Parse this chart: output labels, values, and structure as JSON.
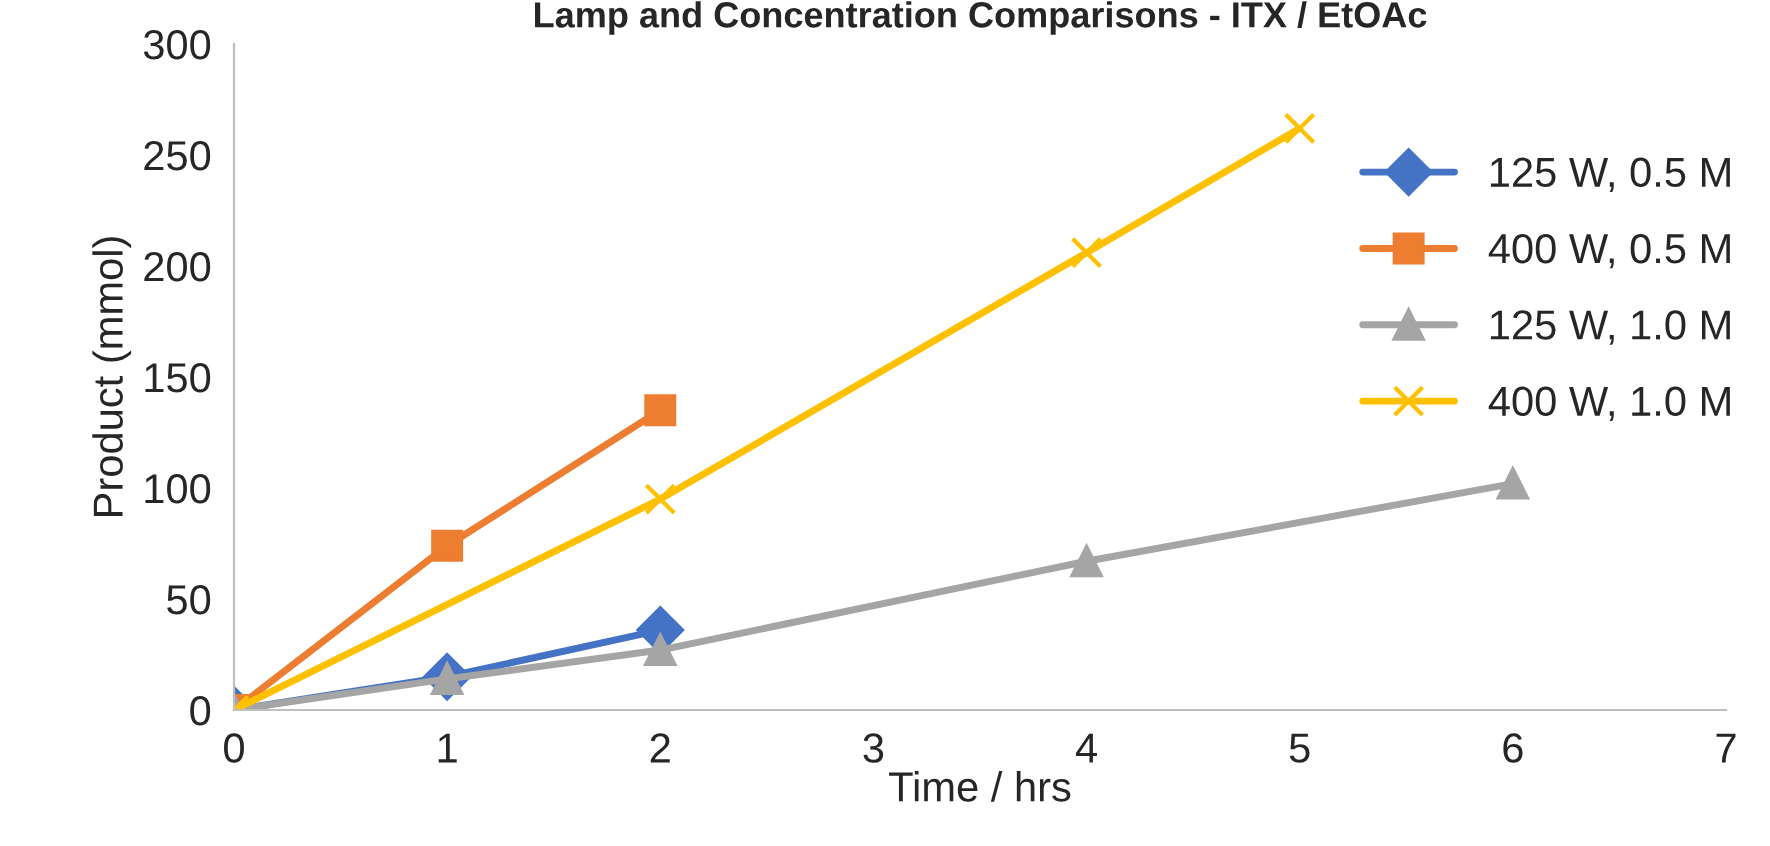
{
  "chart_data": {
    "type": "line",
    "title": "Lamp and Concentration Comparisons - ITX / EtOAc",
    "xlabel": "Time / hrs",
    "ylabel": "Product (mmol)",
    "xlim": [
      0,
      7
    ],
    "xticks": [
      0,
      1,
      2,
      3,
      4,
      5,
      6,
      7
    ],
    "ylim": [
      0,
      300
    ],
    "yticks": [
      0,
      50,
      100,
      150,
      200,
      250,
      300
    ],
    "grid": false,
    "legend": "right",
    "line_style": "solid",
    "series": [
      {
        "name": "125 W, 0.5 M",
        "color": "#4472c4",
        "marker": "diamond",
        "x": [
          0,
          1,
          2
        ],
        "values": [
          0,
          15,
          36
        ]
      },
      {
        "name": "400 W, 0.5 M",
        "color": "#ed7d31",
        "marker": "square",
        "x": [
          0,
          1,
          2
        ],
        "values": [
          0,
          74,
          135
        ]
      },
      {
        "name": "125 W, 1.0 M",
        "color": "#a5a5a5",
        "marker": "triangle",
        "x": [
          0,
          1,
          2,
          4,
          6
        ],
        "values": [
          0,
          14,
          27,
          67,
          102
        ]
      },
      {
        "name": "400 W, 1.0 M",
        "color": "#ffc000",
        "marker": "cross",
        "x": [
          0,
          2,
          4,
          5
        ],
        "values": [
          0,
          95,
          206,
          262
        ]
      }
    ]
  }
}
